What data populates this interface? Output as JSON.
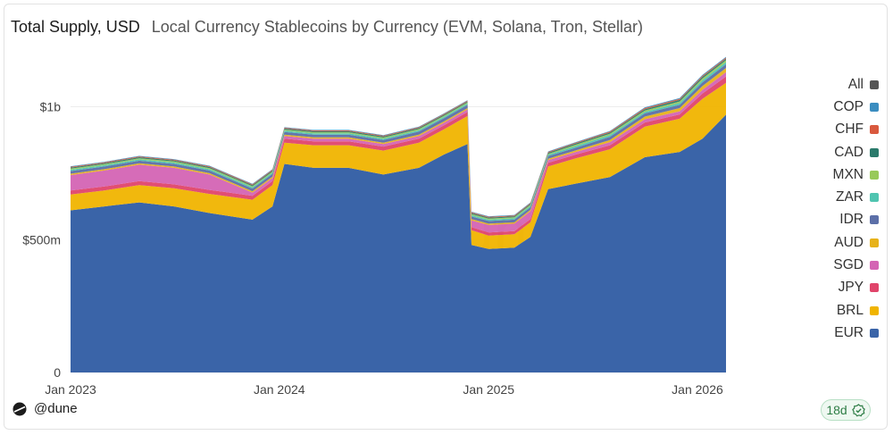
{
  "header": {
    "title": "Total Supply, USD",
    "subtitle": "Local Currency Stablecoins by Currency (EVM, Solana, Tron, Stellar)"
  },
  "watermark": "Dune",
  "footer": {
    "brand": "@dune",
    "badge": "18d"
  },
  "colors": {
    "EUR": "#3a64a8",
    "BRL": "#f0b400",
    "JPY": "#e0446a",
    "SGD": "#d464b4",
    "AUD": "#e7b21a",
    "IDR": "#5c6fa8",
    "ZAR": "#4fc4b0",
    "MXN": "#98c95a",
    "CAD": "#2a7a6b",
    "CHF": "#d9593e",
    "COP": "#3a8dc0",
    "All": "#555555"
  },
  "chart_data": {
    "type": "area",
    "stacked": true,
    "title": "Total Supply, USD",
    "subtitle": "Local Currency Stablecoins by Currency (EVM, Solana, Tron, Stellar)",
    "xlabel": "",
    "ylabel": "",
    "x_ticks": [
      "Jan 2023",
      "Jan 2024",
      "Jan 2025",
      "Jan 2026"
    ],
    "y_ticks": [
      "0",
      "$500m",
      "$1b"
    ],
    "ylim": [
      0,
      1200000000
    ],
    "legend": [
      "All",
      "COP",
      "CHF",
      "CAD",
      "MXN",
      "ZAR",
      "IDR",
      "AUD",
      "SGD",
      "JPY",
      "BRL",
      "EUR"
    ],
    "x": [
      "2023-01-01",
      "2023-03-01",
      "2023-05-01",
      "2023-07-01",
      "2023-09-01",
      "2023-11-15",
      "2023-12-20",
      "2024-01-10",
      "2024-03-01",
      "2024-05-01",
      "2024-07-01",
      "2024-09-01",
      "2024-10-15",
      "2024-11-25",
      "2024-12-02",
      "2025-01-01",
      "2025-02-15",
      "2025-03-15",
      "2025-04-15",
      "2025-06-01",
      "2025-08-01",
      "2025-10-01",
      "2025-12-01",
      "2026-01-10",
      "2026-02-20"
    ],
    "series": [
      {
        "name": "EUR",
        "values": [
          610,
          625,
          640,
          625,
          600,
          575,
          625,
          785,
          770,
          770,
          745,
          770,
          820,
          860,
          480,
          465,
          470,
          510,
          690,
          710,
          735,
          810,
          830,
          880,
          970
        ]
      },
      {
        "name": "BRL",
        "values": [
          60,
          60,
          65,
          68,
          72,
          75,
          80,
          80,
          85,
          85,
          90,
          95,
          95,
          105,
          55,
          50,
          50,
          55,
          85,
          95,
          105,
          115,
          125,
          150,
          120
        ]
      },
      {
        "name": "JPY",
        "values": [
          15,
          15,
          15,
          15,
          15,
          15,
          15,
          15,
          15,
          15,
          15,
          15,
          15,
          15,
          12,
          12,
          12,
          12,
          14,
          14,
          15,
          16,
          16,
          20,
          24
        ]
      },
      {
        "name": "SGD",
        "values": [
          58,
          60,
          62,
          62,
          58,
          12,
          12,
          10,
          10,
          10,
          10,
          10,
          10,
          10,
          25,
          28,
          28,
          30,
          10,
          10,
          12,
          12,
          12,
          14,
          16
        ]
      },
      {
        "name": "AUD",
        "values": [
          5,
          5,
          5,
          5,
          5,
          5,
          5,
          5,
          5,
          5,
          5,
          5,
          5,
          5,
          5,
          5,
          5,
          5,
          5,
          6,
          8,
          10,
          12,
          14,
          16
        ]
      },
      {
        "name": "IDR",
        "values": [
          10,
          10,
          10,
          10,
          10,
          10,
          10,
          10,
          10,
          10,
          10,
          12,
          12,
          12,
          10,
          10,
          10,
          10,
          10,
          10,
          12,
          12,
          12,
          14,
          14
        ]
      },
      {
        "name": "ZAR",
        "values": [
          5,
          5,
          5,
          5,
          5,
          5,
          5,
          5,
          5,
          5,
          5,
          5,
          5,
          5,
          5,
          5,
          5,
          5,
          5,
          6,
          6,
          6,
          7,
          8,
          8
        ]
      },
      {
        "name": "MXN",
        "values": [
          4,
          4,
          4,
          4,
          4,
          4,
          4,
          4,
          4,
          4,
          4,
          4,
          4,
          4,
          4,
          4,
          4,
          4,
          4,
          5,
          5,
          5,
          6,
          7,
          7
        ]
      },
      {
        "name": "CAD",
        "values": [
          4,
          4,
          4,
          4,
          4,
          4,
          4,
          4,
          4,
          4,
          4,
          4,
          4,
          4,
          4,
          4,
          4,
          4,
          4,
          5,
          5,
          5,
          6,
          6,
          6
        ]
      },
      {
        "name": "CHF",
        "values": [
          3,
          3,
          3,
          3,
          3,
          3,
          3,
          3,
          3,
          3,
          3,
          3,
          3,
          3,
          3,
          3,
          3,
          3,
          3,
          3,
          4,
          4,
          4,
          4,
          4
        ]
      },
      {
        "name": "COP",
        "values": [
          2,
          2,
          2,
          2,
          2,
          2,
          2,
          2,
          2,
          2,
          2,
          2,
          2,
          2,
          2,
          2,
          2,
          2,
          2,
          2,
          2,
          3,
          3,
          3,
          3
        ]
      }
    ],
    "value_unit": "millions USD"
  }
}
